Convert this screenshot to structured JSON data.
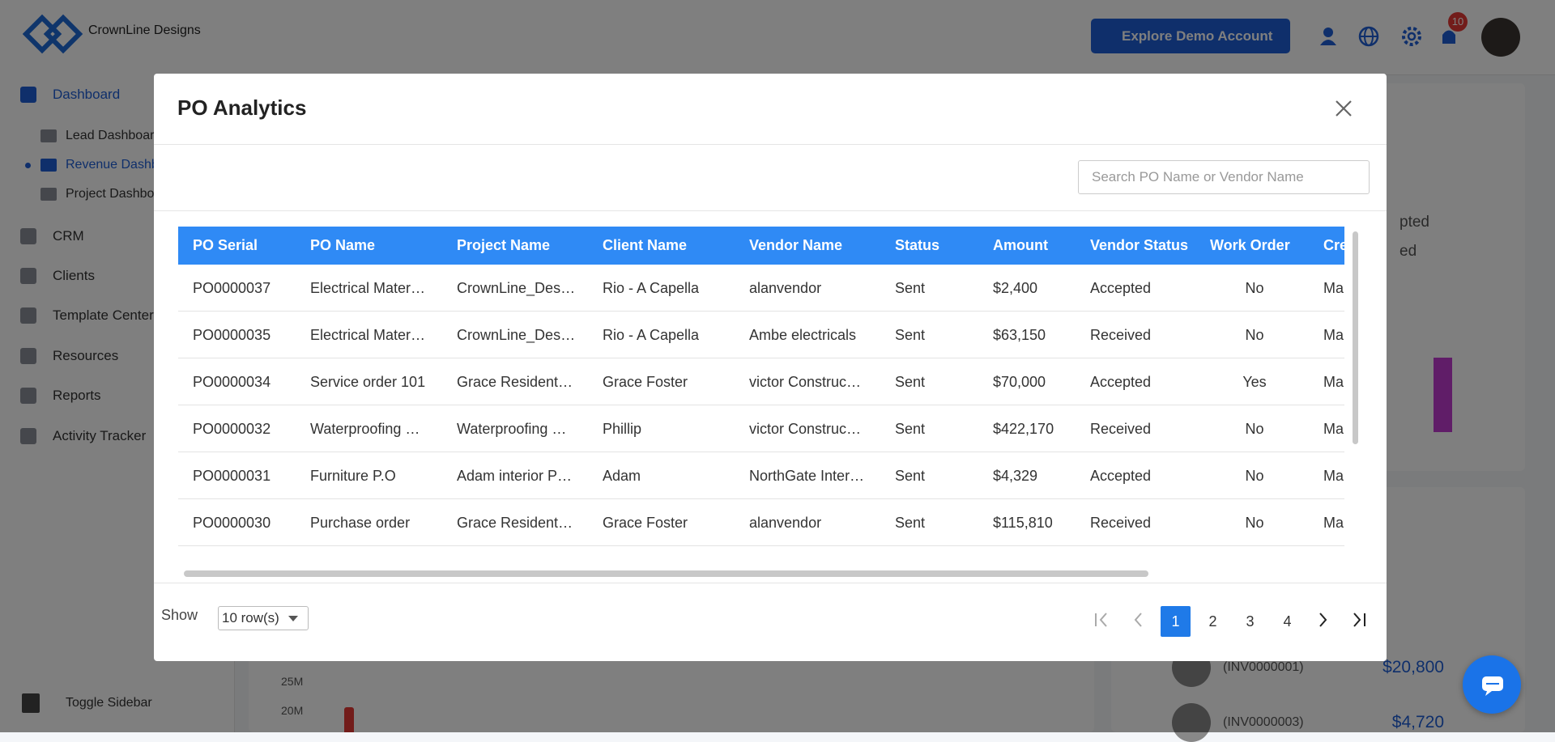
{
  "header": {
    "brand": "CrownLine Designs",
    "demo_button": "Explore Demo Account",
    "notification_count": "10"
  },
  "sidebar": {
    "items": [
      {
        "label": "Dashboard",
        "active": true,
        "children": [
          {
            "label": "Lead Dashboard"
          },
          {
            "label": "Revenue Dashboard",
            "active": true
          },
          {
            "label": "Project Dashboard"
          }
        ]
      },
      {
        "label": "CRM"
      },
      {
        "label": "Clients"
      },
      {
        "label": "Template Center"
      },
      {
        "label": "Resources"
      },
      {
        "label": "Reports"
      },
      {
        "label": "Activity Tracker"
      }
    ],
    "toggle": "Toggle Sidebar"
  },
  "background": {
    "card_texts": [
      "pted",
      "ed"
    ],
    "chart_ticks": [
      "25M",
      "20M"
    ],
    "invoices": [
      {
        "id": "(INV0000001)",
        "amount": "$20,800"
      },
      {
        "id": "(INV0000003)",
        "amount": "$4,720"
      }
    ]
  },
  "modal": {
    "title": "PO Analytics",
    "search_placeholder": "Search PO Name or Vendor Name",
    "table": {
      "columns": [
        "PO Serial",
        "PO Name",
        "Project Name",
        "Client Name",
        "Vendor Name",
        "Status",
        "Amount",
        "Vendor Status",
        "Work Order",
        "Cre"
      ],
      "rows": [
        [
          "PO0000037",
          "Electrical Mater…",
          "CrownLine_Des…",
          "Rio - A Capella",
          "alanvendor",
          "Sent",
          "$2,400",
          "Accepted",
          "No",
          "Ma"
        ],
        [
          "PO0000035",
          "Electrical Mater…",
          "CrownLine_Des…",
          "Rio - A Capella",
          "Ambe electricals",
          "Sent",
          "$63,150",
          "Received",
          "No",
          "Ma"
        ],
        [
          "PO0000034",
          "Service order 101",
          "Grace Resident…",
          "Grace Foster",
          "victor Construc…",
          "Sent",
          "$70,000",
          "Accepted",
          "Yes",
          "Ma"
        ],
        [
          "PO0000032",
          "Waterproofing …",
          "Waterproofing …",
          "Phillip",
          "victor Construc…",
          "Sent",
          "$422,170",
          "Received",
          "No",
          "Ma"
        ],
        [
          "PO0000031",
          "Furniture P.O",
          "Adam interior P…",
          "Adam",
          "NorthGate Inter…",
          "Sent",
          "$4,329",
          "Accepted",
          "No",
          "Ma"
        ],
        [
          "PO0000030",
          "Purchase order",
          "Grace Resident…",
          "Grace Foster",
          "alanvendor",
          "Sent",
          "$115,810",
          "Received",
          "No",
          "Ma"
        ]
      ]
    },
    "footer": {
      "show_label": "Show",
      "rows_option": "10 row(s)",
      "pages": [
        {
          "label": "1",
          "active": true
        },
        {
          "label": "2"
        },
        {
          "label": "3"
        },
        {
          "label": "4"
        }
      ]
    }
  }
}
